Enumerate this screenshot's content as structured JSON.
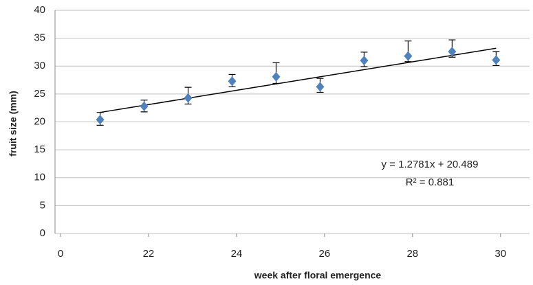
{
  "chart_data": {
    "type": "scatter",
    "x_label": "week after floral emergence",
    "y_label": "fruit size (mm)",
    "x": [
      20.9,
      21.9,
      22.9,
      23.9,
      24.9,
      25.9,
      26.9,
      27.9,
      28.9,
      29.9
    ],
    "series": [
      {
        "name": "fruit size",
        "color": "#4f81bd",
        "values": [
          20.4,
          22.8,
          24.3,
          27.3,
          28.1,
          26.3,
          31.0,
          31.8,
          32.6,
          31.1
        ],
        "errors_upper": [
          1.3,
          1.1,
          1.9,
          1.2,
          2.5,
          1.5,
          1.5,
          2.7,
          2.1,
          1.5
        ],
        "errors_lower": [
          1.0,
          1.0,
          1.1,
          1.0,
          1.2,
          1.0,
          1.1,
          1.0,
          1.0,
          1.0
        ]
      }
    ],
    "trendline": {
      "x": [
        20.9,
        29.9
      ],
      "y": [
        21.7,
        33.2
      ]
    },
    "annotations": [
      "y = 1.2781x + 20.489",
      "R² = 0.881"
    ],
    "xlim": [
      19.875,
      30.66
    ],
    "ylim": [
      0,
      40
    ],
    "xticks": [
      {
        "value": 20,
        "label": "0"
      },
      22,
      24,
      26,
      28,
      30
    ],
    "yticks": [
      0,
      5,
      10,
      15,
      20,
      25,
      30,
      35,
      40
    ],
    "grid": true
  }
}
